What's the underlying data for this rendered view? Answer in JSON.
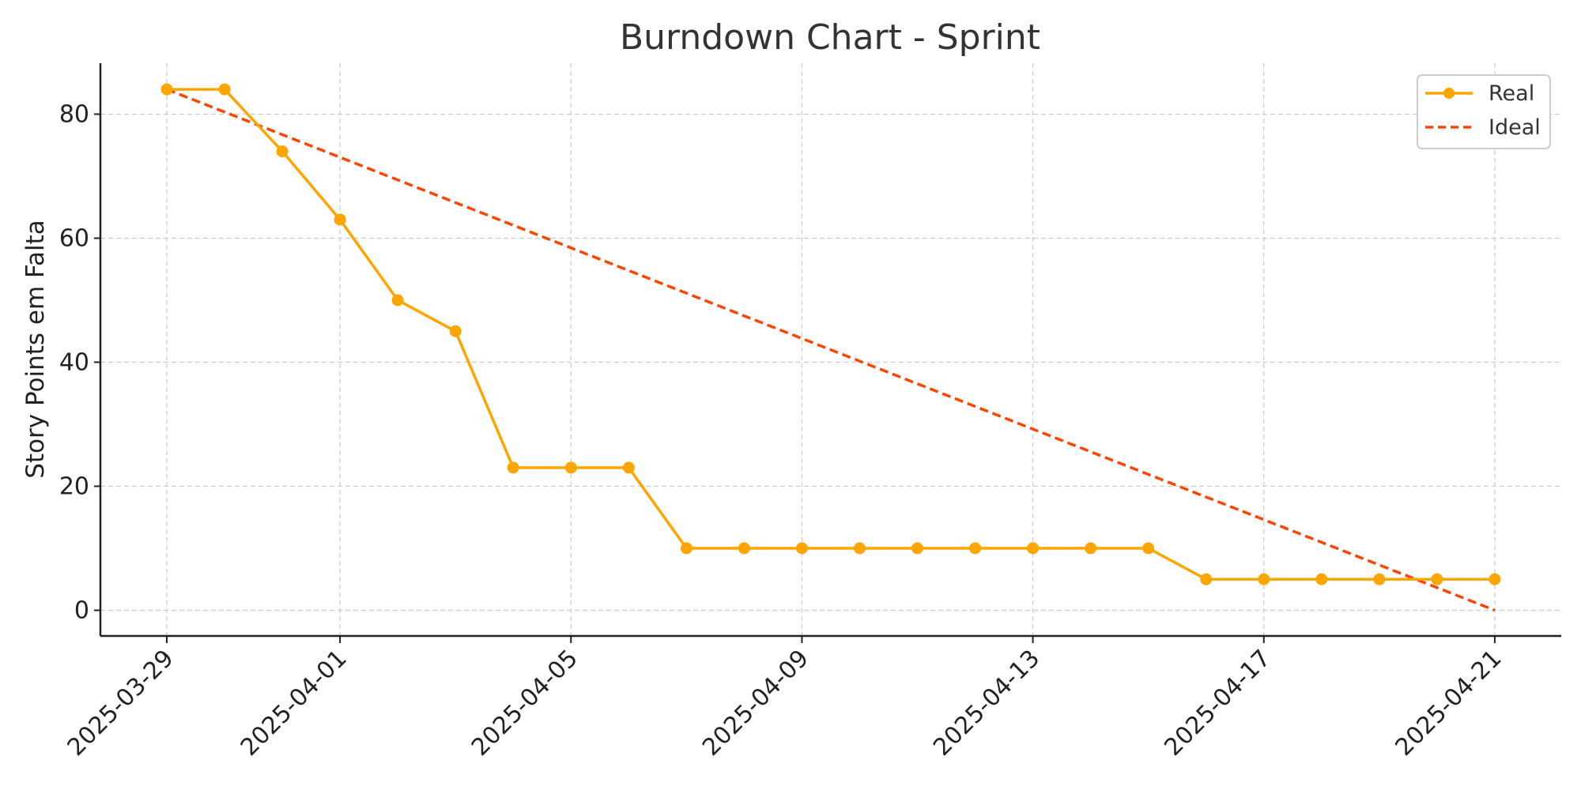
{
  "chart_data": {
    "type": "line",
    "title": "Burndown Chart - Sprint",
    "xlabel": "",
    "ylabel": "Story Points em Falta",
    "x": [
      "2025-03-29",
      "2025-03-30",
      "2025-03-31",
      "2025-04-01",
      "2025-04-02",
      "2025-04-03",
      "2025-04-04",
      "2025-04-05",
      "2025-04-06",
      "2025-04-07",
      "2025-04-08",
      "2025-04-09",
      "2025-04-10",
      "2025-04-11",
      "2025-04-12",
      "2025-04-13",
      "2025-04-14",
      "2025-04-15",
      "2025-04-16",
      "2025-04-17",
      "2025-04-18",
      "2025-04-19",
      "2025-04-20",
      "2025-04-21"
    ],
    "x_ticks": [
      "2025-03-29",
      "2025-04-01",
      "2025-04-05",
      "2025-04-09",
      "2025-04-13",
      "2025-04-17",
      "2025-04-21"
    ],
    "y_ticks": [
      0,
      20,
      40,
      60,
      80
    ],
    "ylim": [
      -4,
      88
    ],
    "grid": true,
    "legend_position": "top-right",
    "series": [
      {
        "name": "Real",
        "color": "#FFA500",
        "style": "solid-with-markers",
        "values": [
          84,
          84,
          74,
          63,
          50,
          45,
          23,
          23,
          23,
          10,
          10,
          10,
          10,
          10,
          10,
          10,
          10,
          10,
          5,
          5,
          5,
          5,
          5,
          5
        ]
      },
      {
        "name": "Ideal",
        "color": "#FF4500",
        "style": "dashed",
        "x": [
          "2025-03-29",
          "2025-04-21"
        ],
        "values": [
          84,
          0
        ]
      }
    ]
  }
}
